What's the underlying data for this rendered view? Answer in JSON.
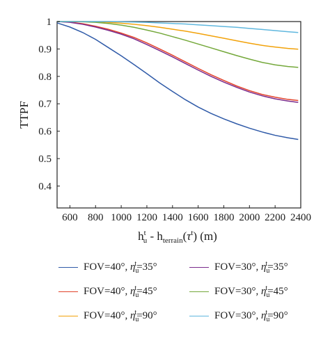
{
  "chart_data": {
    "type": "line",
    "xlabel": "h_u^t - h_terrain(τ^t) (m)",
    "ylabel": "TTPF",
    "xlim": [
      500,
      2400
    ],
    "ylim": [
      0.32,
      1.0
    ],
    "xticks": [
      600,
      800,
      1000,
      1200,
      1400,
      1600,
      1800,
      2000,
      2200,
      2400
    ],
    "yticks": [
      0.4,
      0.5,
      0.6,
      0.7,
      0.8,
      0.9,
      1
    ],
    "x": [
      500,
      600,
      700,
      800,
      900,
      1000,
      1100,
      1200,
      1300,
      1400,
      1500,
      1600,
      1700,
      1800,
      1900,
      2000,
      2100,
      2200,
      2300,
      2380
    ],
    "series": [
      {
        "name": "FOV=40°, η_u^t=35°",
        "color": "#2f5aa8",
        "values": [
          0.995,
          0.98,
          0.96,
          0.935,
          0.905,
          0.875,
          0.843,
          0.81,
          0.776,
          0.745,
          0.715,
          0.688,
          0.665,
          0.645,
          0.627,
          0.611,
          0.597,
          0.585,
          0.576,
          0.57
        ]
      },
      {
        "name": "FOV=40°, η_u^t=45°",
        "color": "#e2422a",
        "values": [
          1.0,
          0.998,
          0.992,
          0.983,
          0.972,
          0.958,
          0.942,
          0.922,
          0.9,
          0.877,
          0.853,
          0.829,
          0.806,
          0.785,
          0.765,
          0.748,
          0.734,
          0.724,
          0.716,
          0.712
        ]
      },
      {
        "name": "FOV=40°, η_u^t=90°",
        "color": "#f2a20a",
        "values": [
          1.0,
          1.0,
          1.0,
          0.999,
          0.997,
          0.994,
          0.99,
          0.985,
          0.979,
          0.972,
          0.965,
          0.957,
          0.948,
          0.939,
          0.93,
          0.921,
          0.913,
          0.907,
          0.902,
          0.899
        ]
      },
      {
        "name": "FOV=30°, η_u^t=35°",
        "color": "#7a2b8c",
        "values": [
          1.0,
          0.997,
          0.99,
          0.98,
          0.968,
          0.954,
          0.937,
          0.916,
          0.894,
          0.871,
          0.847,
          0.823,
          0.8,
          0.779,
          0.76,
          0.743,
          0.729,
          0.718,
          0.71,
          0.705
        ]
      },
      {
        "name": "FOV=30°, η_u^t=45°",
        "color": "#74a83a",
        "values": [
          1.0,
          1.0,
          0.999,
          0.997,
          0.993,
          0.987,
          0.979,
          0.969,
          0.958,
          0.945,
          0.932,
          0.918,
          0.904,
          0.89,
          0.876,
          0.863,
          0.851,
          0.842,
          0.836,
          0.833
        ]
      },
      {
        "name": "FOV=30°, η_u^t=90°",
        "color": "#5fb7de",
        "values": [
          1.0,
          1.0,
          1.0,
          1.0,
          1.0,
          0.999,
          0.998,
          0.997,
          0.995,
          0.993,
          0.991,
          0.988,
          0.985,
          0.982,
          0.979,
          0.975,
          0.971,
          0.967,
          0.963,
          0.96
        ]
      }
    ]
  }
}
